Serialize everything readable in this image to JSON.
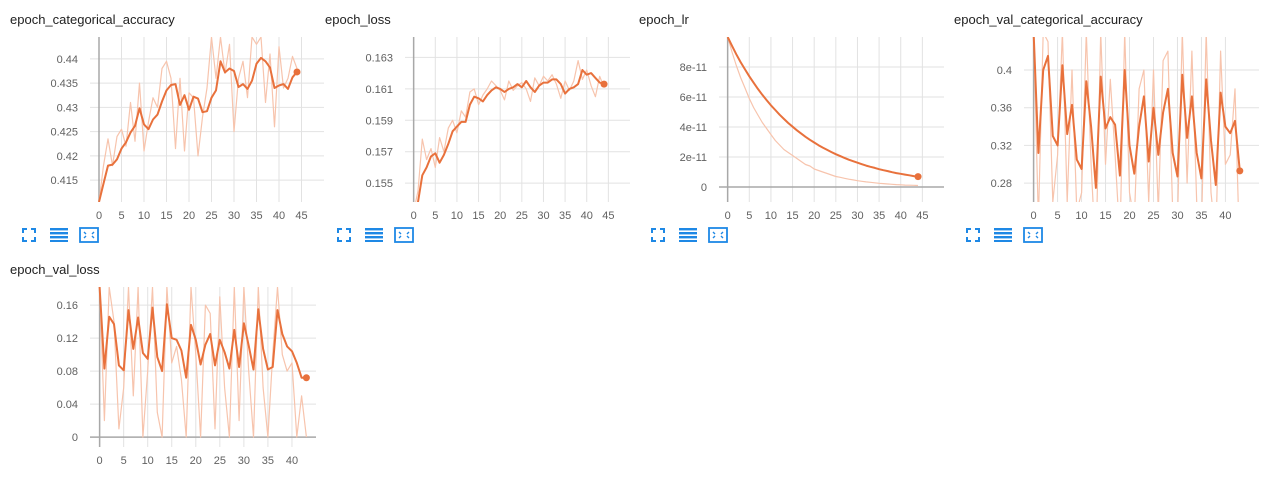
{
  "colors": {
    "line": "#e8713c",
    "raw": "#f7c4ad",
    "grid": "#e2e2e2",
    "axis": "#a8a8a8",
    "icon": "#1e88e5"
  },
  "toolbar_icons": [
    "fullscreen-icon",
    "data-download-icon",
    "fit-domain-icon"
  ],
  "chart_data": [
    {
      "type": "line",
      "title": "epoch_categorical_accuracy",
      "xlabel": "",
      "ylabel": "",
      "xlim": [
        -2,
        50
      ],
      "ylim": [
        0.4105,
        0.4445
      ],
      "xticks": [
        0,
        5,
        10,
        15,
        20,
        25,
        30,
        35,
        40,
        45
      ],
      "yticks": [
        0.415,
        0.42,
        0.425,
        0.43,
        0.435,
        0.44
      ],
      "ytick_labels": [
        "0.415",
        "0.42",
        "0.425",
        "0.43",
        "0.435",
        "0.44"
      ],
      "grid": true,
      "series": [
        {
          "x": [
            0,
            1,
            2,
            3,
            4,
            5,
            6,
            7,
            8,
            9,
            10,
            11,
            12,
            13,
            14,
            15,
            16,
            17,
            18,
            19,
            20,
            21,
            22,
            23,
            24,
            25,
            26,
            27,
            28,
            29,
            30,
            31,
            32,
            33,
            34,
            35,
            36,
            37,
            38,
            39,
            40,
            41,
            42,
            43,
            44
          ],
          "values": [
            0.4105,
            0.4143,
            0.418,
            0.4182,
            0.4193,
            0.4215,
            0.4228,
            0.4248,
            0.4262,
            0.4298,
            0.4265,
            0.4255,
            0.4275,
            0.4285,
            0.4312,
            0.4335,
            0.4346,
            0.4348,
            0.4305,
            0.4325,
            0.4295,
            0.4322,
            0.4318,
            0.429,
            0.4292,
            0.432,
            0.4335,
            0.4395,
            0.4372,
            0.438,
            0.4375,
            0.4342,
            0.4348,
            0.4338,
            0.4355,
            0.439,
            0.4402,
            0.4395,
            0.4382,
            0.434,
            0.4345,
            0.4348,
            0.4338,
            0.4362,
            0.4373
          ]
        },
        {
          "x": [
            0,
            1,
            2,
            3,
            4,
            5,
            6,
            7,
            8,
            9,
            10,
            11,
            12,
            13,
            14,
            15,
            16,
            17,
            18,
            19,
            20,
            21,
            22,
            23,
            24,
            25,
            26,
            27,
            28,
            29,
            30,
            31,
            32,
            33,
            34,
            35,
            36,
            37,
            38,
            39,
            40,
            41,
            42,
            43,
            44
          ],
          "values": [
            0.4105,
            0.418,
            0.4235,
            0.418,
            0.424,
            0.4255,
            0.422,
            0.431,
            0.423,
            0.435,
            0.421,
            0.427,
            0.432,
            0.43,
            0.438,
            0.4395,
            0.436,
            0.4215,
            0.436,
            0.421,
            0.433,
            0.432,
            0.42,
            0.428,
            0.434,
            0.4445,
            0.436,
            0.4445,
            0.437,
            0.443,
            0.425,
            0.436,
            0.4395,
            0.432,
            0.4445,
            0.443,
            0.4445,
            0.431,
            0.441,
            0.426,
            0.4425,
            0.434,
            0.436,
            0.4405,
            0.438
          ]
        }
      ]
    },
    {
      "type": "line",
      "title": "epoch_loss",
      "xlabel": "",
      "ylabel": "",
      "xlim": [
        -2,
        50
      ],
      "ylim": [
        0.1538,
        0.1643
      ],
      "xticks": [
        0,
        5,
        10,
        15,
        20,
        25,
        30,
        35,
        40,
        45
      ],
      "yticks": [
        0.155,
        0.157,
        0.159,
        0.161,
        0.163
      ],
      "ytick_labels": [
        "0.155",
        "0.157",
        "0.159",
        "0.161",
        "0.163"
      ],
      "grid": true,
      "series": [
        {
          "x": [
            0,
            1,
            2,
            3,
            4,
            5,
            6,
            7,
            8,
            9,
            10,
            11,
            12,
            13,
            14,
            15,
            16,
            17,
            18,
            19,
            20,
            21,
            22,
            23,
            24,
            25,
            26,
            27,
            28,
            29,
            30,
            31,
            32,
            33,
            34,
            35,
            36,
            37,
            38,
            39,
            40,
            41,
            42,
            43,
            44
          ],
          "values": [
            0.1532,
            0.1538,
            0.1555,
            0.156,
            0.1567,
            0.1569,
            0.1563,
            0.1568,
            0.1575,
            0.1583,
            0.1586,
            0.1589,
            0.1589,
            0.16,
            0.1605,
            0.1604,
            0.1602,
            0.1606,
            0.1609,
            0.1611,
            0.161,
            0.1608,
            0.161,
            0.1611,
            0.1613,
            0.1611,
            0.1615,
            0.1611,
            0.1608,
            0.1612,
            0.1614,
            0.1614,
            0.1616,
            0.1616,
            0.1613,
            0.1607,
            0.161,
            0.1611,
            0.1613,
            0.1622,
            0.1619,
            0.162,
            0.1617,
            0.1614,
            0.1613
          ]
        },
        {
          "x": [
            0,
            1,
            2,
            3,
            4,
            5,
            6,
            7,
            8,
            9,
            10,
            11,
            12,
            13,
            14,
            15,
            16,
            17,
            18,
            19,
            20,
            21,
            22,
            23,
            24,
            25,
            26,
            27,
            28,
            29,
            30,
            31,
            32,
            33,
            34,
            35,
            36,
            37,
            38,
            39,
            40,
            41,
            42,
            43,
            44
          ],
          "values": [
            0.1532,
            0.1545,
            0.1578,
            0.1565,
            0.1572,
            0.156,
            0.1579,
            0.157,
            0.1585,
            0.159,
            0.1582,
            0.1596,
            0.1592,
            0.1608,
            0.161,
            0.16,
            0.1606,
            0.161,
            0.1615,
            0.1612,
            0.1609,
            0.1603,
            0.1615,
            0.1609,
            0.1612,
            0.1614,
            0.161,
            0.1602,
            0.1617,
            0.1612,
            0.1618,
            0.1615,
            0.1619,
            0.1613,
            0.1604,
            0.1615,
            0.1609,
            0.1615,
            0.1628,
            0.1616,
            0.1622,
            0.1612,
            0.1605,
            0.1618,
            0.1611
          ]
        }
      ]
    },
    {
      "type": "line",
      "title": "epoch_lr",
      "xlabel": "",
      "ylabel": "",
      "xlim": [
        -2,
        50
      ],
      "ylim": [
        -1e-11,
        1e-10
      ],
      "xticks": [
        0,
        5,
        10,
        15,
        20,
        25,
        30,
        35,
        40,
        45
      ],
      "yticks": [
        0,
        2e-11,
        4e-11,
        6e-11,
        8e-11
      ],
      "ytick_labels": [
        "0",
        "2e-11",
        "4e-11",
        "6e-11",
        "8e-11"
      ],
      "grid": true,
      "series": [
        {
          "x": [
            0,
            1,
            2,
            3,
            4,
            5,
            6,
            7,
            8,
            9,
            10,
            11,
            12,
            13,
            14,
            15,
            16,
            17,
            18,
            19,
            20,
            21,
            22,
            23,
            24,
            25,
            26,
            27,
            28,
            29,
            30,
            31,
            32,
            33,
            34,
            35,
            36,
            37,
            38,
            39,
            40,
            41,
            42,
            43,
            44
          ],
          "values": [
            1e-10,
            9.41e-11,
            8.85e-11,
            8.33e-11,
            7.84e-11,
            7.38e-11,
            6.95e-11,
            6.54e-11,
            6.15e-11,
            5.79e-11,
            5.45e-11,
            5.13e-11,
            4.82e-11,
            4.54e-11,
            4.27e-11,
            4.02e-11,
            3.78e-11,
            3.56e-11,
            3.35e-11,
            3.15e-11,
            2.97e-11,
            2.79e-11,
            2.63e-11,
            2.47e-11,
            2.33e-11,
            2.19e-11,
            2.06e-11,
            1.94e-11,
            1.82e-11,
            1.72e-11,
            1.62e-11,
            1.52e-11,
            1.43e-11,
            1.35e-11,
            1.27e-11,
            1.19e-11,
            1.12e-11,
            1.06e-11,
            9.9e-12,
            9.3e-12,
            8.8e-12,
            8.3e-12,
            7.8e-12,
            7.3e-12,
            6.9e-12
          ]
        },
        {
          "x": [
            0,
            1,
            2,
            3,
            4,
            5,
            6,
            7,
            8,
            9,
            10,
            11,
            12,
            13,
            14,
            15,
            16,
            17,
            18,
            19,
            20,
            21,
            22,
            23,
            24,
            25,
            26,
            27,
            28,
            29,
            30,
            31,
            32,
            33,
            34,
            35,
            36,
            37,
            38,
            39,
            40,
            41,
            42,
            43,
            44
          ],
          "values": [
            1e-10,
            9e-11,
            8.1e-11,
            7.3e-11,
            6.6e-11,
            5.9e-11,
            5.3e-11,
            4.8e-11,
            4.3e-11,
            3.9e-11,
            3.5e-11,
            3.1e-11,
            2.8e-11,
            2.5e-11,
            2.3e-11,
            2.1e-11,
            1.9e-11,
            1.7e-11,
            1.5e-11,
            1.4e-11,
            1.2e-11,
            1.1e-11,
            1e-11,
            9e-12,
            8e-12,
            7e-12,
            6.5e-12,
            5.8e-12,
            5.2e-12,
            4.7e-12,
            4.2e-12,
            3.8e-12,
            3.4e-12,
            3.1e-12,
            2.8e-12,
            2.5e-12,
            2.3e-12,
            2e-12,
            1.8e-12,
            1.6e-12,
            1.5e-12,
            1.3e-12,
            1.2e-12,
            1.1e-12,
            1e-12
          ]
        }
      ]
    },
    {
      "type": "line",
      "title": "epoch_val_categorical_accuracy",
      "xlabel": "",
      "ylabel": "",
      "xlim": [
        -2,
        47
      ],
      "ylim": [
        0.26,
        0.435
      ],
      "xticks": [
        0,
        5,
        10,
        15,
        20,
        25,
        30,
        35,
        40
      ],
      "yticks": [
        0.28,
        0.32,
        0.36,
        0.4
      ],
      "ytick_labels": [
        "0.28",
        "0.32",
        "0.36",
        "0.4"
      ],
      "grid": true,
      "series": [
        {
          "x": [
            0,
            1,
            2,
            3,
            4,
            5,
            6,
            7,
            8,
            9,
            10,
            11,
            12,
            13,
            14,
            15,
            16,
            17,
            18,
            19,
            20,
            21,
            22,
            23,
            24,
            25,
            26,
            27,
            28,
            29,
            30,
            31,
            32,
            33,
            34,
            35,
            36,
            37,
            38,
            39,
            40,
            41,
            42,
            43
          ],
          "values": [
            0.44,
            0.312,
            0.4,
            0.415,
            0.33,
            0.32,
            0.405,
            0.332,
            0.363,
            0.305,
            0.295,
            0.388,
            0.34,
            0.275,
            0.393,
            0.338,
            0.35,
            0.342,
            0.288,
            0.4,
            0.32,
            0.29,
            0.34,
            0.372,
            0.303,
            0.36,
            0.31,
            0.355,
            0.38,
            0.312,
            0.287,
            0.395,
            0.328,
            0.372,
            0.312,
            0.285,
            0.39,
            0.325,
            0.278,
            0.376,
            0.34,
            0.333,
            0.346,
            0.293
          ]
        },
        {
          "x": [
            0,
            1,
            2,
            3,
            4,
            5,
            6,
            7,
            8,
            9,
            10,
            11,
            12,
            13,
            14,
            15,
            16,
            17,
            18,
            19,
            20,
            21,
            22,
            23,
            24,
            25,
            26,
            27,
            28,
            29,
            30,
            31,
            32,
            33,
            34,
            35,
            36,
            37,
            38,
            39,
            40,
            41,
            42,
            43
          ],
          "values": [
            0.44,
            0.24,
            0.44,
            0.43,
            0.26,
            0.31,
            0.44,
            0.26,
            0.4,
            0.25,
            0.27,
            0.44,
            0.3,
            0.2,
            0.44,
            0.3,
            0.39,
            0.31,
            0.22,
            0.44,
            0.27,
            0.24,
            0.38,
            0.4,
            0.26,
            0.4,
            0.25,
            0.41,
            0.42,
            0.25,
            0.24,
            0.44,
            0.28,
            0.42,
            0.26,
            0.23,
            0.44,
            0.27,
            0.22,
            0.42,
            0.3,
            0.31,
            0.38,
            0.2
          ]
        }
      ]
    },
    {
      "type": "line",
      "title": "epoch_val_loss",
      "xlabel": "",
      "ylabel": "",
      "xlim": [
        -2,
        45
      ],
      "ylim": [
        -0.012,
        0.182
      ],
      "xticks": [
        0,
        5,
        10,
        15,
        20,
        25,
        30,
        35,
        40
      ],
      "yticks": [
        0,
        0.04,
        0.08,
        0.12,
        0.16
      ],
      "ytick_labels": [
        "0",
        "0.04",
        "0.08",
        "0.12",
        "0.16"
      ],
      "grid": true,
      "series": [
        {
          "x": [
            0,
            1,
            2,
            3,
            4,
            5,
            6,
            7,
            8,
            9,
            10,
            11,
            12,
            13,
            14,
            15,
            16,
            17,
            18,
            19,
            20,
            21,
            22,
            23,
            24,
            25,
            26,
            27,
            28,
            29,
            30,
            31,
            32,
            33,
            34,
            35,
            36,
            37,
            38,
            39,
            40,
            41,
            42,
            43
          ],
          "values": [
            0.182,
            0.083,
            0.146,
            0.137,
            0.087,
            0.081,
            0.154,
            0.107,
            0.145,
            0.102,
            0.095,
            0.157,
            0.097,
            0.08,
            0.161,
            0.12,
            0.118,
            0.105,
            0.072,
            0.136,
            0.118,
            0.088,
            0.112,
            0.125,
            0.087,
            0.118,
            0.103,
            0.083,
            0.13,
            0.085,
            0.138,
            0.111,
            0.082,
            0.155,
            0.107,
            0.082,
            0.085,
            0.154,
            0.125,
            0.11,
            0.104,
            0.09,
            0.072,
            0.072
          ]
        },
        {
          "x": [
            0,
            1,
            2,
            3,
            4,
            5,
            6,
            7,
            8,
            9,
            10,
            11,
            12,
            13,
            14,
            15,
            16,
            17,
            18,
            19,
            20,
            21,
            22,
            23,
            24,
            25,
            26,
            27,
            28,
            29,
            30,
            31,
            32,
            33,
            34,
            35,
            36,
            37,
            38,
            39,
            40,
            41,
            42,
            43
          ],
          "values": [
            0.182,
            0.02,
            0.182,
            0.14,
            0.01,
            0.06,
            0.182,
            0.05,
            0.182,
            0.0,
            0.08,
            0.182,
            0.03,
            0.0,
            0.182,
            0.09,
            0.11,
            0.07,
            0.0,
            0.182,
            0.1,
            0.0,
            0.16,
            0.15,
            0.01,
            0.17,
            0.06,
            0.0,
            0.182,
            0.02,
            0.182,
            0.08,
            0.0,
            0.182,
            0.06,
            0.0,
            0.1,
            0.182,
            0.1,
            0.08,
            0.09,
            0.0,
            0.05,
            0.0
          ]
        }
      ]
    }
  ]
}
